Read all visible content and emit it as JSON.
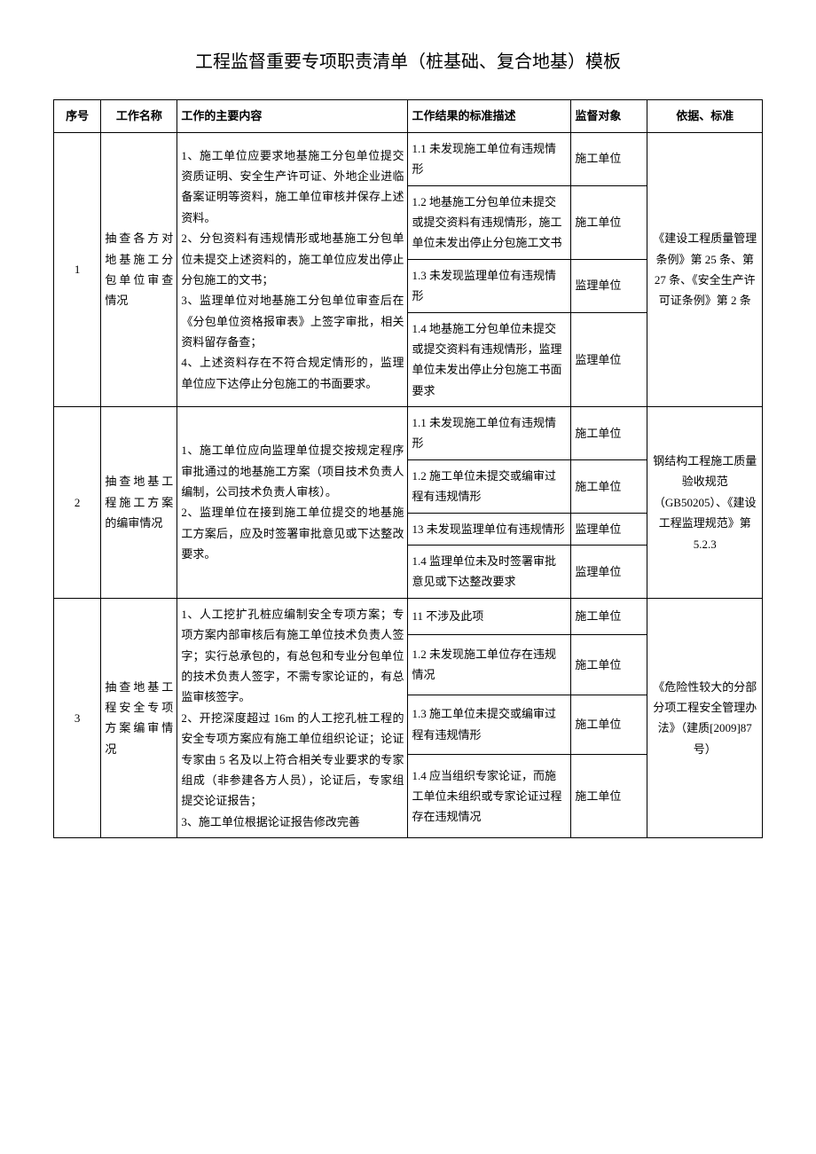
{
  "title": "工程监督重要专项职责清单（桩基础、复合地基）模板",
  "headers": {
    "seq": "序号",
    "name": "工作名称",
    "content": "工作的主要内容",
    "result": "工作结果的标准描述",
    "target": "监督对象",
    "basis": "依据、标准"
  },
  "rows": [
    {
      "seq": "1",
      "name": "抽查各方对地基施工分包单位审查情况",
      "content": "1、施工单位应要求地基施工分包单位提交资质证明、安全生产许可证、外地企业进临备案证明等资料，施工单位审核并保存上述资料。\n2、分包资料有违规情形或地基施工分包单位未提交上述资料的，施工单位应发出停止分包施工的文书；\n3、监理单位对地基施工分包单位审查后在《分包单位资格报审表》上签字审批，相关资料留存备查；\n4、上述资料存在不符合规定情形的，监理单位应下达停止分包施工的书面要求。",
      "results": [
        {
          "text": "1.1 未发现施工单位有违规情形",
          "target": "施工单位"
        },
        {
          "text": "1.2 地基施工分包单位未提交或提交资料有违规情形，施工单位未发出停止分包施工文书",
          "target": "施工单位"
        },
        {
          "text": "1.3 未发现监理单位有违规情形",
          "target": "监理单位"
        },
        {
          "text": "1.4 地基施工分包单位未提交或提交资料有违规情形，监理单位未发出停止分包施工书面要求",
          "target": "监理单位"
        }
      ],
      "basis": "《建设工程质量管理条例》第 25 条、第 27 条、《安全生产许可证条例》第 2 条"
    },
    {
      "seq": "2",
      "name": "抽查地基工程施工方案的编审情况",
      "content": "1、施工单位应向监理单位提交按规定程序审批通过的地基施工方案（项目技术负责人编制，公司技术负责人审核）。\n2、监理单位在接到施工单位提交的地基施工方案后，应及时签署审批意见或下达整改要求。",
      "results": [
        {
          "text": "1.1 未发现施工单位有违规情形",
          "target": "施工单位"
        },
        {
          "text": "1.2 施工单位未提交或编审过程有违规情形",
          "target": "施工单位"
        },
        {
          "text": "13 未发现监理单位有违规情形",
          "target": "监理单位"
        },
        {
          "text": "1.4 监理单位未及时签署审批意见或下达整改要求",
          "target": "监理单位"
        }
      ],
      "basis": "钢结构工程施工质量验收规范（GB50205）、《建设工程监理规范》第 5.2.3"
    },
    {
      "seq": "3",
      "name": "抽查地基工程安全专项方案编审情况",
      "content": "1、人工挖扩孔桩应编制安全专项方案；专项方案内部审核后有施工单位技术负责人签字；实行总承包的，有总包和专业分包单位的技术负责人签字，不需专家论证的，有总监审核签字。\n2、开挖深度超过 16m 的人工挖孔桩工程的安全专项方案应有施工单位组织论证；论证专家由 5 名及以上符合相关专业要求的专家组成（非参建各方人员），论证后，专家组提交论证报告；\n3、施工单位根据论证报告修改完善",
      "results": [
        {
          "text": "11 不涉及此项",
          "target": "施工单位"
        },
        {
          "text": "1.2 未发现施工单位存在违规情况",
          "target": "施工单位"
        },
        {
          "text": "1.3 施工单位未提交或编审过程有违规情形",
          "target": "施工单位"
        },
        {
          "text": "1.4 应当组织专家论证，而施工单位未组织或专家论证过程存在违规情况",
          "target": "施工单位"
        }
      ],
      "basis": "《危险性较大的分部分项工程安全管理办法》（建质[2009]87 号）"
    }
  ]
}
